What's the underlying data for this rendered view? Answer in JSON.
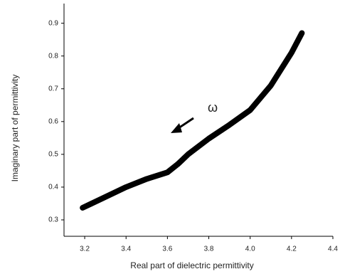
{
  "chart_data": {
    "type": "line",
    "x_label": "Real part of dielectric permittivity",
    "y_label": "Imaginary part of permittivity",
    "annotation": "ω",
    "x": [
      3.19,
      3.3,
      3.4,
      3.5,
      3.6,
      3.65,
      3.7,
      3.8,
      3.9,
      4.0,
      4.1,
      4.2,
      4.25
    ],
    "series": [
      {
        "color": "#000000",
        "values": [
          0.337,
          0.37,
          0.4,
          0.425,
          0.445,
          0.47,
          0.5,
          0.548,
          0.59,
          0.635,
          0.71,
          0.81,
          0.87
        ]
      }
    ],
    "xlim": [
      3.1,
      4.4
    ],
    "xticks": [
      3.2,
      3.4,
      3.6,
      3.8,
      {
        "value": 4.0,
        "label": "4.0"
      },
      4.2,
      4.4
    ],
    "ylim": [
      0.25,
      0.96
    ],
    "yticks": [
      0.3,
      0.4,
      0.5,
      0.6,
      0.7,
      0.8,
      0.9
    ],
    "grid": false
  }
}
